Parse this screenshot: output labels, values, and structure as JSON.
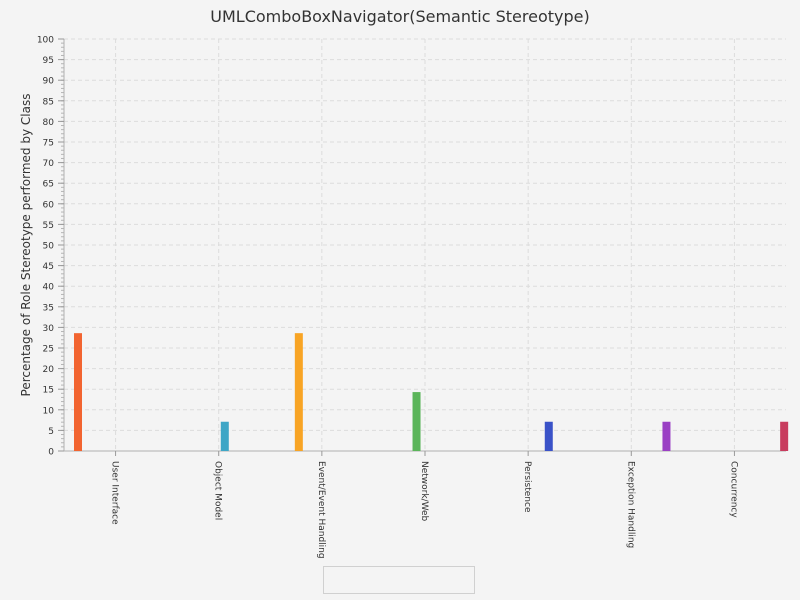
{
  "chart_data": {
    "type": "bar",
    "title": "UMLComboBoxNavigator(Semantic Stereotype)",
    "xlabel": "",
    "ylabel": "Percentage of Role Stereotype performed by Class",
    "ylim": [
      0,
      100
    ],
    "ytick_step": 5,
    "grid": true,
    "legend": "bottom-center",
    "categories": [
      "User Interface",
      "Object Model",
      "Event/Event Handling",
      "Network/Web",
      "Persistence",
      "Exception Handling",
      "Concurrency"
    ],
    "series": [
      {
        "values": [
          28.6,
          0,
          0,
          0,
          0,
          0,
          0
        ],
        "color": "#f26430"
      },
      {
        "values": [
          0,
          0,
          28.6,
          0,
          0,
          0,
          0
        ],
        "color": "#f8a424"
      },
      {
        "values": [
          0,
          0,
          0,
          14.3,
          0,
          0,
          0
        ],
        "color": "#5bb55a"
      },
      {
        "values": [
          0,
          7.1,
          0,
          0,
          0,
          0,
          0
        ],
        "color": "#3ea6c6"
      },
      {
        "values": [
          0,
          0,
          0,
          0,
          7.1,
          0,
          0
        ],
        "color": "#3a52c8"
      },
      {
        "values": [
          0,
          0,
          0,
          0,
          0,
          7.1,
          0
        ],
        "color": "#9a40c4"
      },
      {
        "values": [
          0,
          0,
          0,
          0,
          0,
          0,
          7.1
        ],
        "color": "#c83c5e"
      }
    ]
  }
}
